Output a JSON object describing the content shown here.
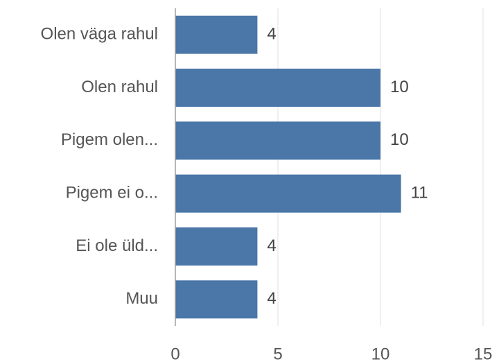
{
  "chart_data": {
    "type": "bar",
    "orientation": "horizontal",
    "categories": [
      "Olen väga rahul",
      "Olen rahul",
      "Pigem olen...",
      "Pigem ei o...",
      "Ei ole üld...",
      "Muu"
    ],
    "values": [
      4,
      10,
      10,
      11,
      4,
      4
    ],
    "color": "#4a76a8",
    "xlim": [
      0,
      15
    ],
    "xticks": [
      0,
      5,
      10,
      15
    ],
    "grid": true
  }
}
